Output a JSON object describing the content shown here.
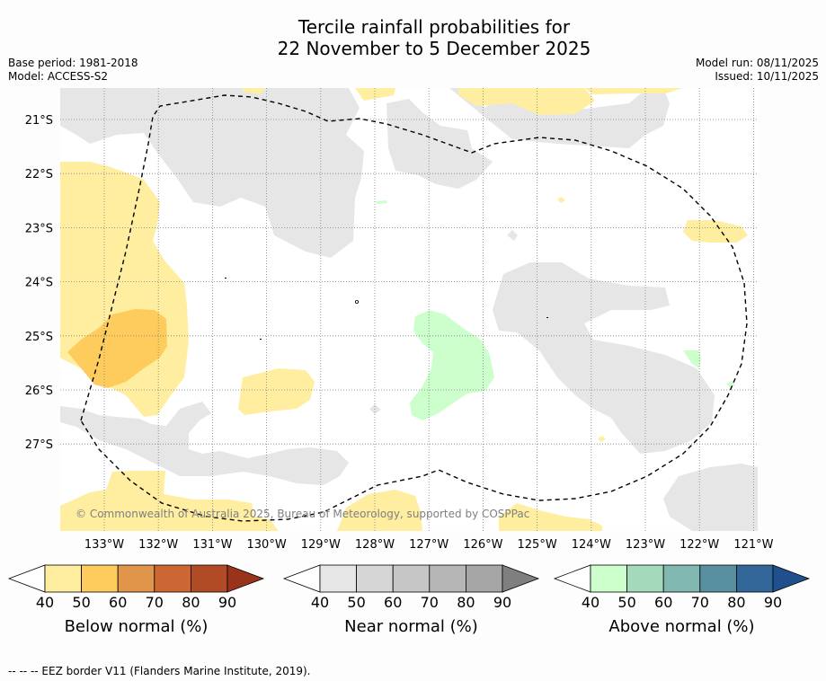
{
  "title": {
    "line1": "Tercile rainfall probabilities for",
    "line2": "22 November to 5 December 2025"
  },
  "meta": {
    "base_period": "Base period: 1981-2018",
    "model": "Model: ACCESS-S2",
    "model_run": "Model run: 08/11/2025",
    "issued": "Issued: 10/11/2025"
  },
  "axes": {
    "lat_labels": [
      "21°S",
      "22°S",
      "23°S",
      "24°S",
      "25°S",
      "26°S",
      "27°S"
    ],
    "lon_labels": [
      "133°W",
      "132°W",
      "131°W",
      "130°W",
      "129°W",
      "128°W",
      "127°W",
      "126°W",
      "125°W",
      "124°W",
      "123°W",
      "122°W",
      "121°W"
    ]
  },
  "credit": "© Commonwealth of Australia 2025, Bureau of Meteorology, supported by COSPPac",
  "colorbars": [
    {
      "title": "Below normal (%)",
      "ticks": [
        "40",
        "50",
        "60",
        "70",
        "80",
        "90"
      ],
      "colors": [
        "#ffffff",
        "#ffeda0",
        "#fecc5c",
        "#e0954a",
        "#cc6633",
        "#b14b26",
        "#99331a"
      ]
    },
    {
      "title": "Near normal (%)",
      "ticks": [
        "40",
        "50",
        "60",
        "70",
        "80",
        "90"
      ],
      "colors": [
        "#ffffff",
        "#e6e6e6",
        "#d6d6d6",
        "#c6c6c6",
        "#b6b6b6",
        "#a6a6a6",
        "#7f7f7f"
      ]
    },
    {
      "title": "Above normal (%)",
      "ticks": [
        "40",
        "50",
        "60",
        "70",
        "80",
        "90"
      ],
      "colors": [
        "#ffffff",
        "#ccffcc",
        "#a5d9bb",
        "#82b8b2",
        "#5890a0",
        "#336699",
        "#1f4f8c"
      ]
    }
  ],
  "footer": "--  --  -- EEZ border V11 (Flanders Marine Institute, 2019).",
  "colors": {
    "below": "#ffeda0",
    "below_mid": "#fecc5c",
    "near": "#e6e6e6",
    "above": "#ccffcc",
    "grid": "#808080"
  }
}
